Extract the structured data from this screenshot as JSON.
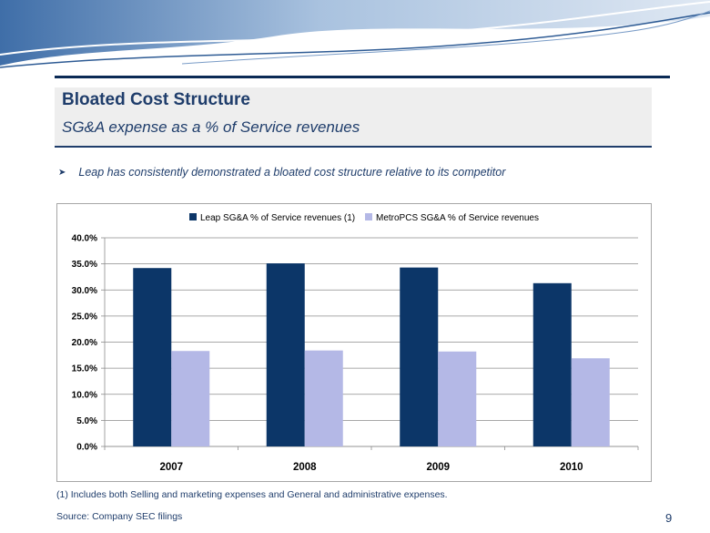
{
  "slide": {
    "title": "Bloated Cost Structure",
    "subtitle": "SG&A expense as a % of Service revenues",
    "bullet": "Leap has consistently demonstrated a bloated cost structure relative to its competitor",
    "footnote": "(1) Includes both Selling and marketing expenses and General and administrative expenses.",
    "source": "Source: Company SEC filings",
    "page_number": "9"
  },
  "colors": {
    "leap": "#0c3668",
    "metro": "#b4b8e6",
    "accent": "#1f3d6b"
  },
  "chart_data": {
    "type": "bar",
    "title": "",
    "xlabel": "",
    "ylabel": "",
    "categories": [
      "2007",
      "2008",
      "2009",
      "2010"
    ],
    "series": [
      {
        "name": "Leap SG&A % of Service revenues (1)",
        "values": [
          34.2,
          35.1,
          34.3,
          31.3
        ]
      },
      {
        "name": "MetroPCS SG&A % of Service revenues",
        "values": [
          18.3,
          18.4,
          18.2,
          16.9
        ]
      }
    ],
    "ylim": [
      0,
      40
    ],
    "yticks": [
      "0.0%",
      "5.0%",
      "10.0%",
      "15.0%",
      "20.0%",
      "25.0%",
      "30.0%",
      "35.0%",
      "40.0%"
    ],
    "legend_position": "top",
    "grid": true
  }
}
